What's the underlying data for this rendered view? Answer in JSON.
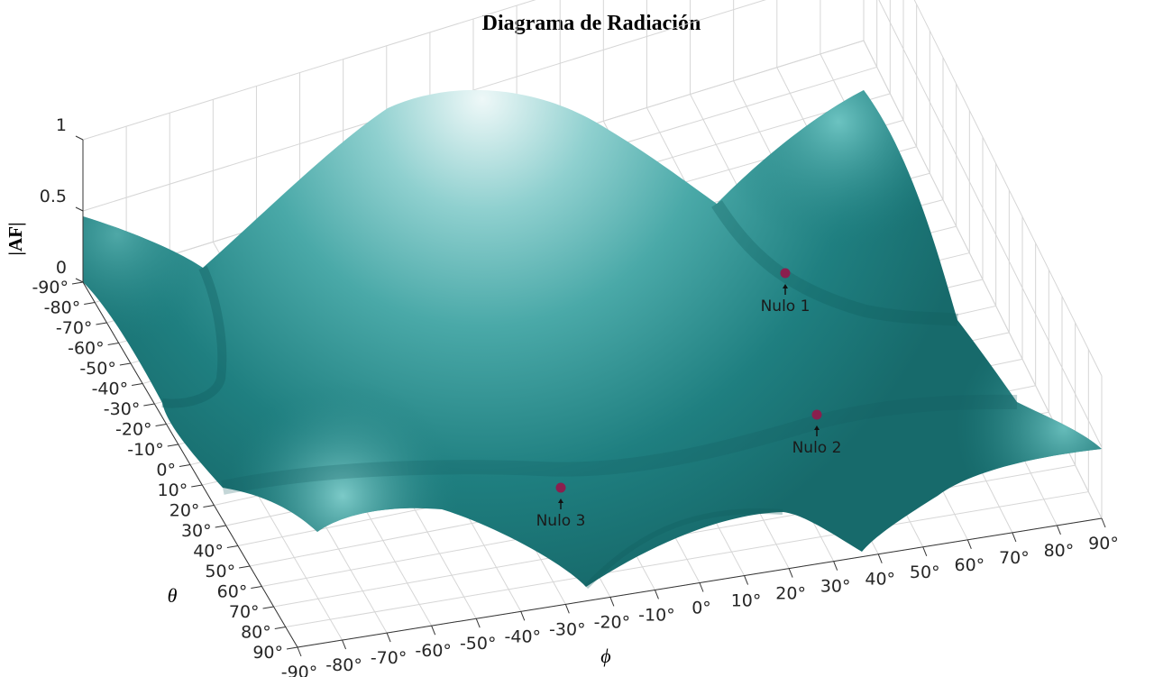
{
  "chart_data": {
    "type": "surface",
    "title": "Diagrama de Radiación",
    "zlabel": "|AF|",
    "ylabel": "θ",
    "xlabel": "ϕ",
    "z_ticks": [
      "0",
      "0.5",
      "1"
    ],
    "z_values": [
      0,
      0.5,
      1
    ],
    "zlim": [
      0,
      1
    ],
    "theta_ticks": [
      "-90°",
      "-80°",
      "-70°",
      "-60°",
      "-50°",
      "-40°",
      "-30°",
      "-20°",
      "-10°",
      "0°",
      "10°",
      "20°",
      "30°",
      "40°",
      "50°",
      "60°",
      "70°",
      "80°",
      "90°"
    ],
    "theta_values": [
      -90,
      -80,
      -70,
      -60,
      -50,
      -40,
      -30,
      -20,
      -10,
      0,
      10,
      20,
      30,
      40,
      50,
      60,
      70,
      80,
      90
    ],
    "phi_ticks": [
      "-90°",
      "-80°",
      "-70°",
      "-60°",
      "-50°",
      "-40°",
      "-30°",
      "-20°",
      "-10°",
      "0°",
      "10°",
      "20°",
      "30°",
      "40°",
      "50°",
      "60°",
      "70°",
      "80°",
      "90°"
    ],
    "phi_values": [
      -90,
      -80,
      -70,
      -60,
      -50,
      -40,
      -30,
      -20,
      -10,
      0,
      10,
      20,
      30,
      40,
      50,
      60,
      70,
      80,
      90
    ],
    "xlim": [
      -90,
      90
    ],
    "ylim": [
      -90,
      90
    ],
    "grid": true,
    "surface_color": "#1f7f80",
    "highlight_color": "#eef8f8",
    "marker_color": "#8a1f4e",
    "annotations": [
      {
        "label": "Nulo 1",
        "phi": 45,
        "theta": -30,
        "af": 0
      },
      {
        "label": "Nulo 2",
        "phi": 60,
        "theta": 5,
        "af": 0
      },
      {
        "label": "Nulo 3",
        "phi": 10,
        "theta": 40,
        "af": 0
      }
    ]
  }
}
